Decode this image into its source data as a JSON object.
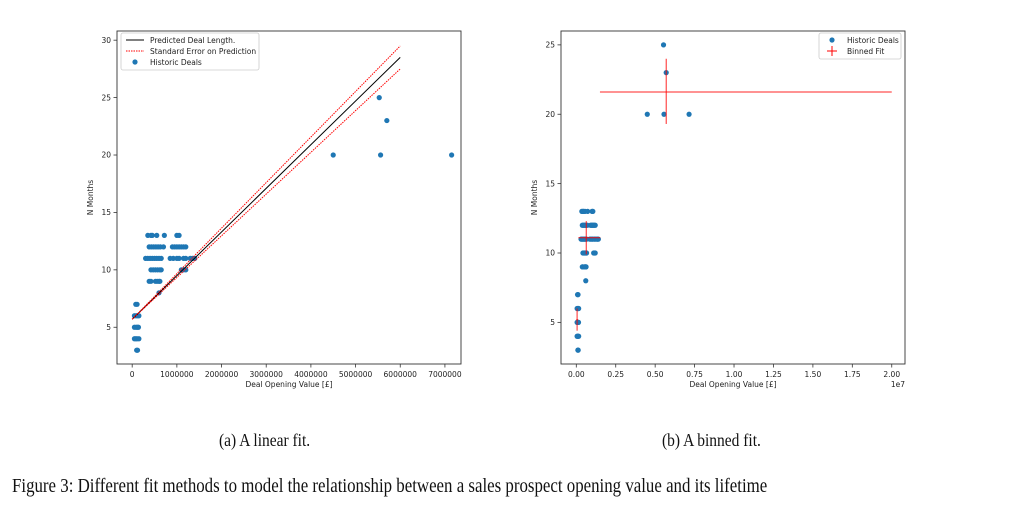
{
  "chart_data": [
    {
      "type": "scatter",
      "panel": "a",
      "xlabel": "Deal Opening Value [£]",
      "ylabel": "N Months",
      "xlim": [
        -340000,
        7360000
      ],
      "ylim": [
        1.8,
        30.8
      ],
      "xticks": [
        0,
        1000000,
        2000000,
        3000000,
        4000000,
        5000000,
        6000000,
        7000000
      ],
      "xtick_labels": [
        "0",
        "1000000",
        "2000000",
        "3000000",
        "4000000",
        "5000000",
        "6000000",
        "7000000"
      ],
      "yticks": [
        5,
        10,
        15,
        20,
        25,
        30
      ],
      "ytick_labels": [
        "5",
        "10",
        "15",
        "20",
        "25",
        "30"
      ],
      "legend_position": "top-left",
      "legend": [
        "Predicted Deal Length.",
        "Standard Error on Prediction",
        "Historic Deals"
      ],
      "fit_line": {
        "x": [
          0,
          6000000
        ],
        "y": [
          5.7,
          28.5
        ]
      },
      "stderr_upper": {
        "x": [
          0,
          6000000
        ],
        "y": [
          5.7,
          29.5
        ]
      },
      "stderr_lower": {
        "x": [
          0,
          6000000
        ],
        "y": [
          5.7,
          27.5
        ]
      },
      "points_source": "deals"
    },
    {
      "type": "scatter",
      "panel": "b",
      "xlabel": "Deal Opening Value [£]",
      "ylabel": "N Months",
      "x_offset_label": "1e7",
      "xlim": [
        -0.097,
        2.084
      ],
      "ylim": [
        2.0,
        26.0
      ],
      "xticks": [
        0,
        0.25,
        0.5,
        0.75,
        1.0,
        1.25,
        1.5,
        1.75,
        2.0
      ],
      "xtick_labels": [
        "0.00",
        "0.25",
        "0.50",
        "0.75",
        "1.00",
        "1.25",
        "1.50",
        "1.75",
        "2.00"
      ],
      "yticks": [
        5,
        10,
        15,
        20,
        25
      ],
      "ytick_labels": [
        "5",
        "10",
        "15",
        "20",
        "25"
      ],
      "legend_position": "top-right",
      "legend": [
        "Historic Deals",
        "Binned Fit"
      ],
      "binned_fit": [
        {
          "x": 0.005,
          "y": 5.2,
          "xerr": [
            0.0,
            0.01
          ],
          "yerr": [
            4.4,
            6.0
          ]
        },
        {
          "x": 0.063,
          "y": 11.1,
          "xerr": [
            0.013,
            0.152
          ],
          "yerr": [
            9.9,
            12.3
          ]
        },
        {
          "x": 0.57,
          "y": 21.6,
          "xerr": [
            0.15,
            2.0
          ],
          "yerr": [
            19.3,
            24.0
          ]
        }
      ],
      "points_source": "deals"
    }
  ],
  "deals": [
    [
      100000,
      3
    ],
    [
      120000,
      3
    ],
    [
      50000,
      4
    ],
    [
      80000,
      4
    ],
    [
      110000,
      4
    ],
    [
      150000,
      4
    ],
    [
      50000,
      5
    ],
    [
      90000,
      5
    ],
    [
      120000,
      5
    ],
    [
      140000,
      5
    ],
    [
      50000,
      6
    ],
    [
      90000,
      6
    ],
    [
      120000,
      6
    ],
    [
      150000,
      6
    ],
    [
      80000,
      7
    ],
    [
      110000,
      7
    ],
    [
      600000,
      8
    ],
    [
      380000,
      9
    ],
    [
      420000,
      9
    ],
    [
      520000,
      9
    ],
    [
      560000,
      9
    ],
    [
      600000,
      9
    ],
    [
      620000,
      9
    ],
    [
      420000,
      10
    ],
    [
      470000,
      10
    ],
    [
      520000,
      10
    ],
    [
      570000,
      10
    ],
    [
      620000,
      10
    ],
    [
      650000,
      10
    ],
    [
      1100000,
      10
    ],
    [
      1150000,
      10
    ],
    [
      1200000,
      10
    ],
    [
      300000,
      11
    ],
    [
      350000,
      11
    ],
    [
      400000,
      11
    ],
    [
      450000,
      11
    ],
    [
      500000,
      11
    ],
    [
      550000,
      11
    ],
    [
      600000,
      11
    ],
    [
      650000,
      11
    ],
    [
      850000,
      11
    ],
    [
      920000,
      11
    ],
    [
      1000000,
      11
    ],
    [
      1050000,
      11
    ],
    [
      1150000,
      11
    ],
    [
      1200000,
      11
    ],
    [
      1300000,
      11
    ],
    [
      1350000,
      11
    ],
    [
      1400000,
      11
    ],
    [
      380000,
      12
    ],
    [
      430000,
      12
    ],
    [
      480000,
      12
    ],
    [
      530000,
      12
    ],
    [
      580000,
      12
    ],
    [
      630000,
      12
    ],
    [
      700000,
      12
    ],
    [
      900000,
      12
    ],
    [
      950000,
      12
    ],
    [
      1000000,
      12
    ],
    [
      1050000,
      12
    ],
    [
      1100000,
      12
    ],
    [
      1150000,
      12
    ],
    [
      1200000,
      12
    ],
    [
      350000,
      13
    ],
    [
      420000,
      13
    ],
    [
      450000,
      13
    ],
    [
      550000,
      13
    ],
    [
      720000,
      13
    ],
    [
      1000000,
      13
    ],
    [
      1050000,
      13
    ],
    [
      4500000,
      20
    ],
    [
      5560000,
      20
    ],
    [
      7150000,
      20
    ],
    [
      5700000,
      23
    ],
    [
      5530000,
      25
    ]
  ],
  "captions": {
    "a": "(a) A linear fit.",
    "b": "(b) A binned fit.",
    "figure": "Figure 3: Different fit methods to model the relationship between a sales prospect opening value and its lifetime"
  },
  "colors": {
    "points": "#1f77b4",
    "fit": "#000000",
    "stderr": "#ff0000",
    "binned": "#ff0000",
    "axes": "#333333"
  }
}
